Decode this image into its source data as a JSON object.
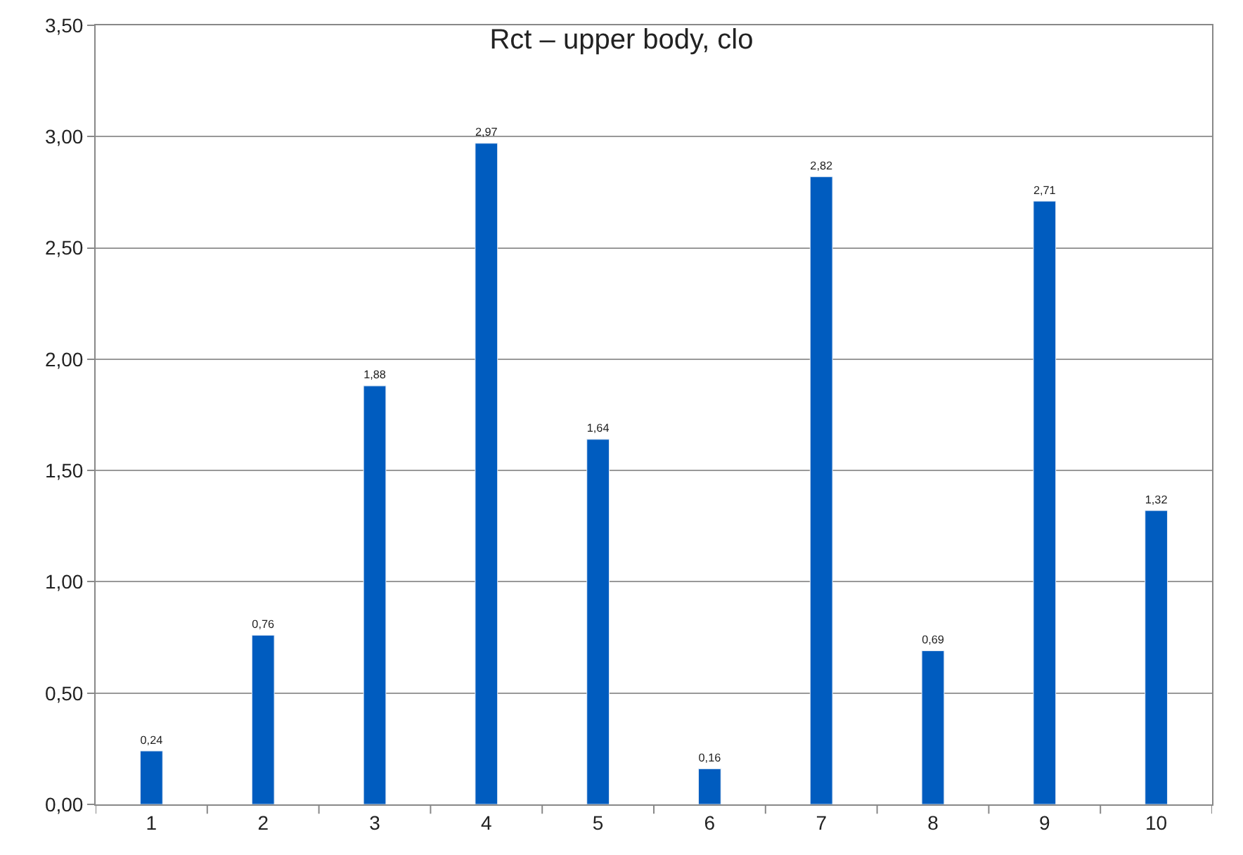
{
  "chart_data": {
    "type": "bar",
    "title": "Rct – upper body, clo",
    "categories": [
      "1",
      "2",
      "3",
      "4",
      "5",
      "6",
      "7",
      "8",
      "9",
      "10"
    ],
    "values": [
      0.24,
      0.76,
      1.88,
      2.97,
      1.64,
      0.16,
      2.82,
      0.69,
      2.71,
      1.32
    ],
    "value_labels": [
      "0,24",
      "0,76",
      "1,88",
      "2,97",
      "1,64",
      "0,16",
      "2,82",
      "0,69",
      "2,71",
      "1,32"
    ],
    "color": "#005cbf",
    "ylim": [
      0,
      3.5
    ],
    "yticks": [
      {
        "value": 0,
        "label": "0,00"
      },
      {
        "value": 0.5,
        "label": "0,50"
      },
      {
        "value": 1,
        "label": "1,00"
      },
      {
        "value": 1.5,
        "label": "1,50"
      },
      {
        "value": 2,
        "label": "2,00"
      },
      {
        "value": 2.5,
        "label": "2,50"
      },
      {
        "value": 3,
        "label": "3,00"
      },
      {
        "value": 3.5,
        "label": "3,50"
      }
    ],
    "grid": "y",
    "legend": false
  }
}
